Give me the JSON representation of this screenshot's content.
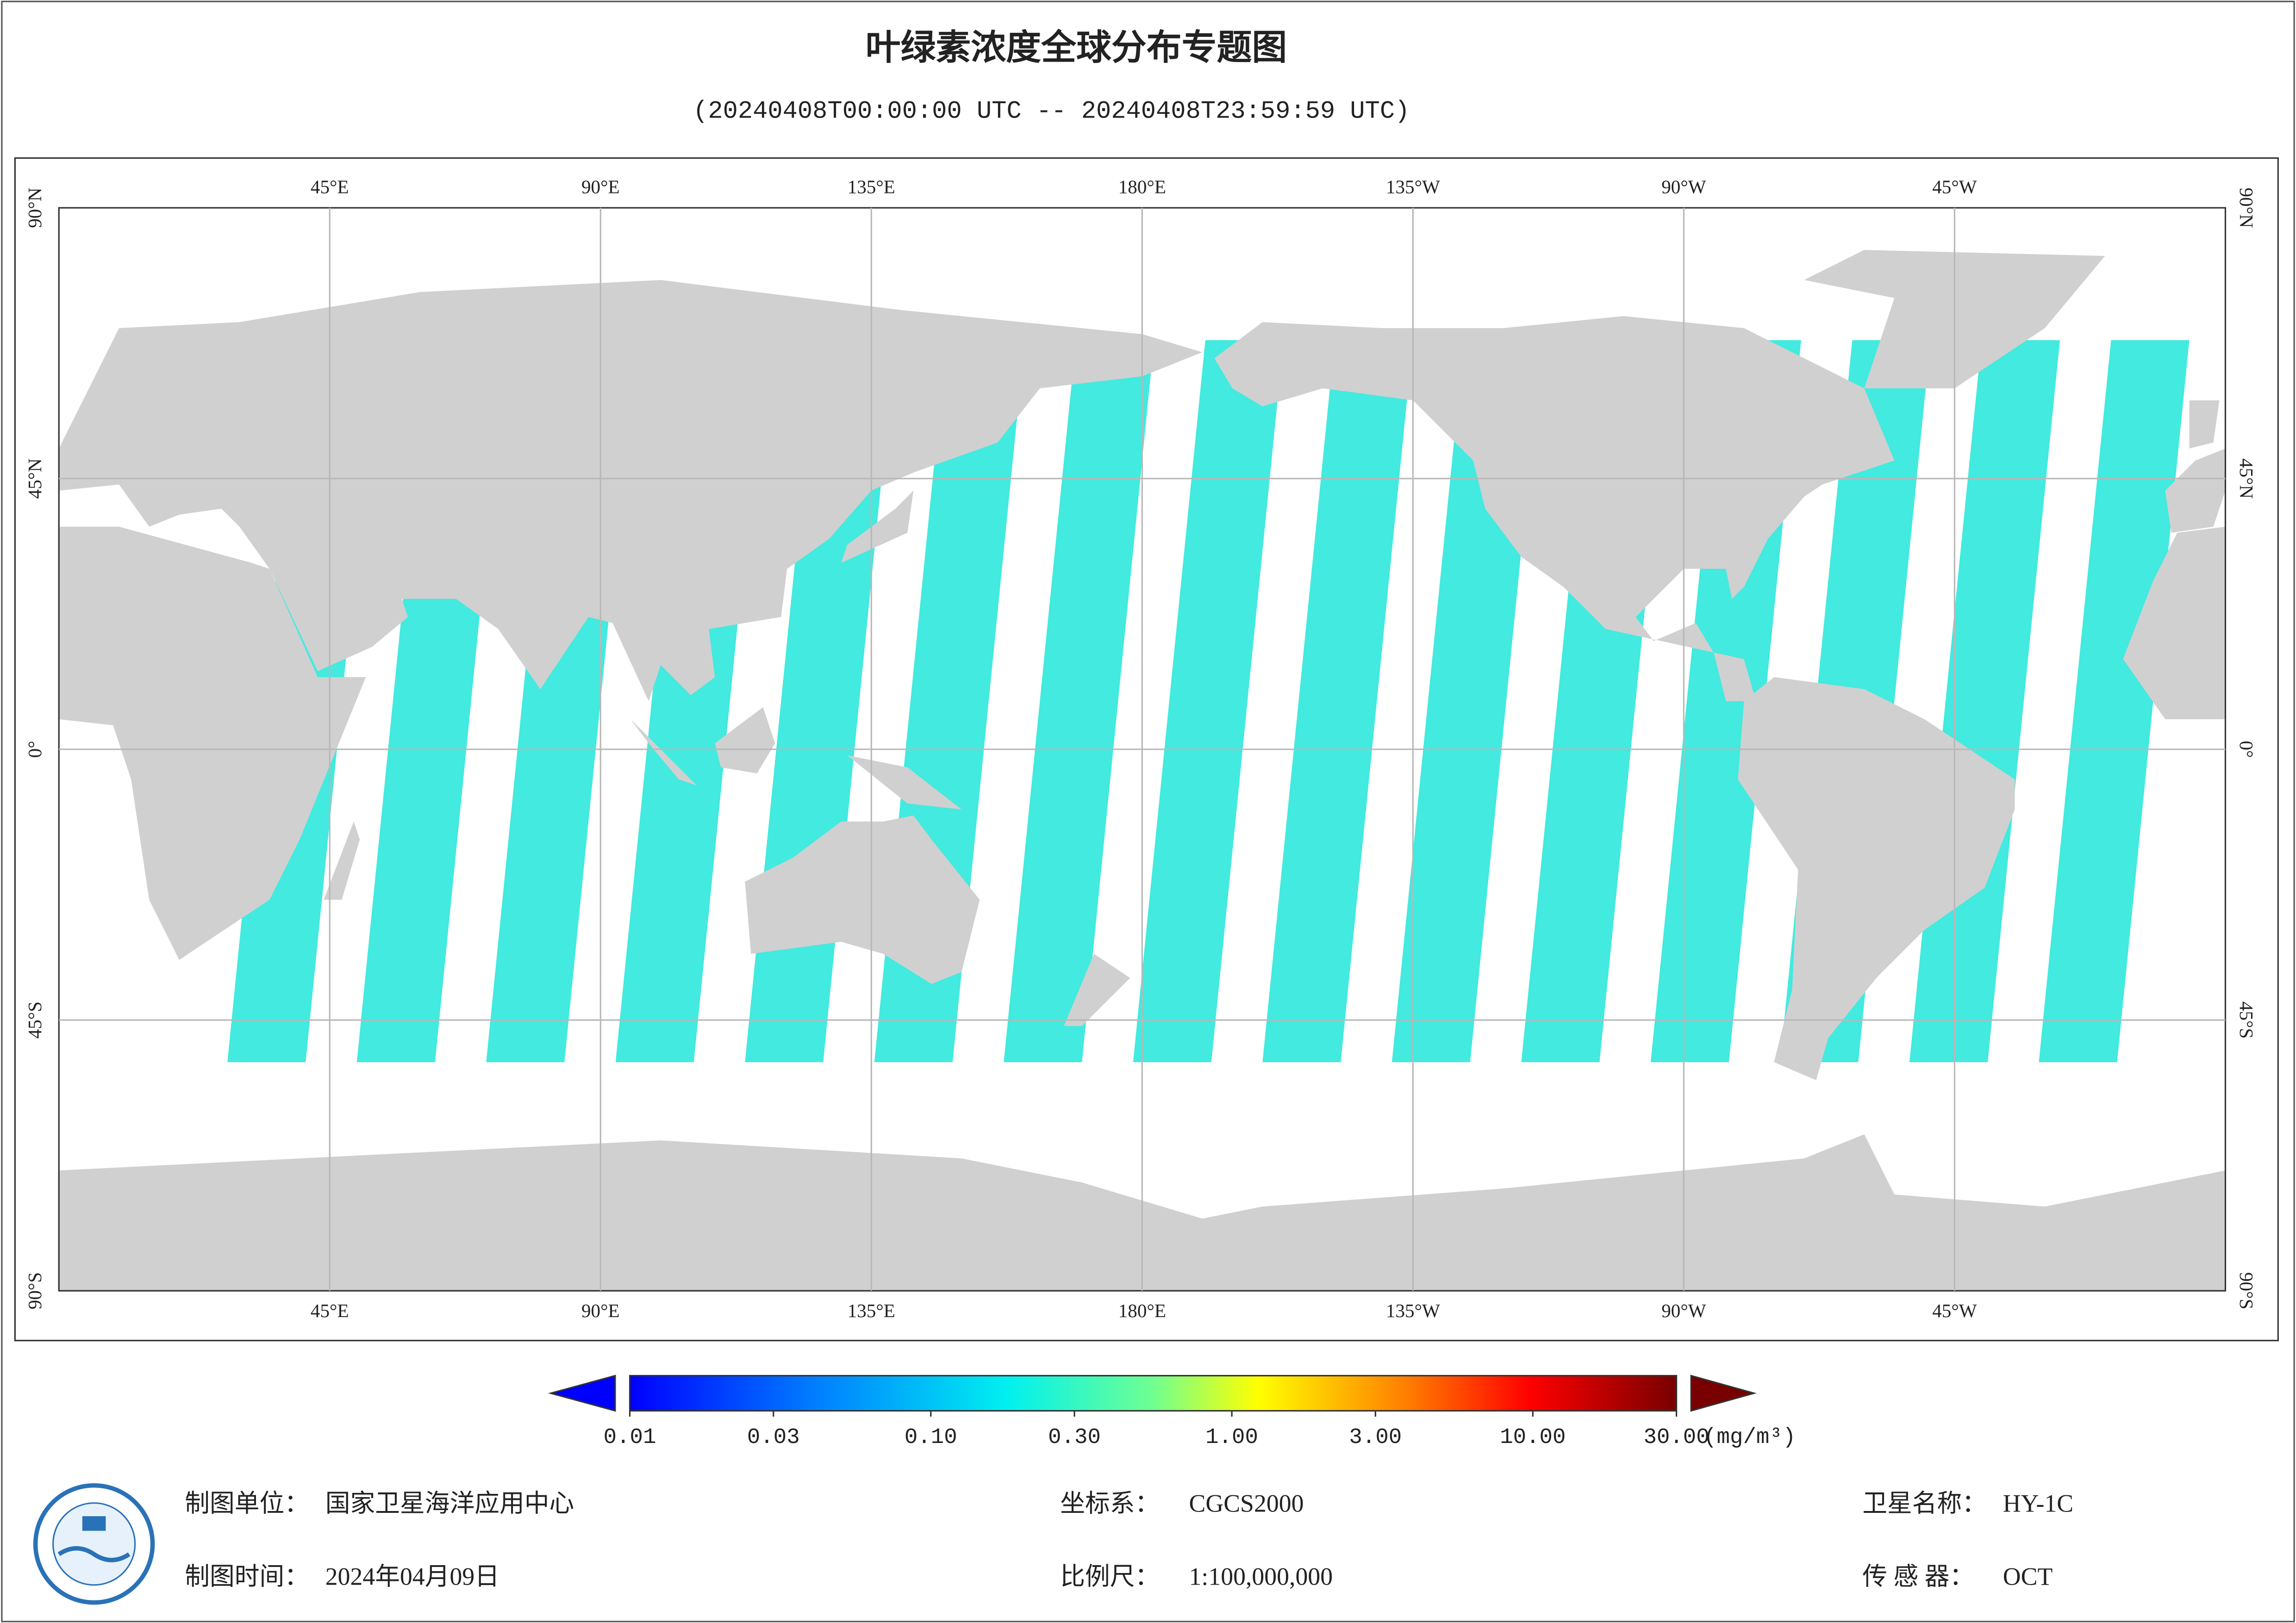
{
  "header": {
    "title": "叶绿素浓度全球分布专题图",
    "subtitle": "(20240408T00:00:00 UTC -- 20240408T23:59:59 UTC)"
  },
  "map": {
    "lonlim": [
      0,
      360
    ],
    "latlim": [
      -90,
      90
    ],
    "lon_ticks": [
      {
        "value": 45,
        "label": "45°E"
      },
      {
        "value": 90,
        "label": "90°E"
      },
      {
        "value": 135,
        "label": "135°E"
      },
      {
        "value": 180,
        "label": "180°E"
      },
      {
        "value": 225,
        "label": "135°W"
      },
      {
        "value": 270,
        "label": "90°W"
      },
      {
        "value": 315,
        "label": "45°W"
      }
    ],
    "lat_ticks": [
      {
        "value": 90,
        "label": "90°N"
      },
      {
        "value": 45,
        "label": "45°N"
      },
      {
        "value": 0,
        "label": "0°"
      },
      {
        "value": -45,
        "label": "45°S"
      },
      {
        "value": -90,
        "label": "90°S"
      }
    ]
  },
  "colorbar": {
    "log": true,
    "lim": [
      0.01,
      30
    ],
    "ticks": [
      0.01,
      0.03,
      {
        "value": 0.1,
        "label": "0.10"
      },
      {
        "value": 0.3,
        "label": "0.30"
      },
      {
        "value": 1,
        "label": "1.00"
      },
      {
        "value": 3,
        "label": "3.00"
      },
      {
        "value": 10,
        "label": "10.00"
      },
      {
        "value": 30,
        "label": "30.00"
      }
    ],
    "unit": "(mg/m³)"
  },
  "footer": {
    "org": {
      "label": "制图单位：",
      "value": "国家卫星海洋应用中心"
    },
    "date": {
      "label": "制图时间：",
      "value": "2024年04月09日"
    },
    "crs": {
      "label": "坐标系：",
      "value": "CGCS2000"
    },
    "scale": {
      "label": "比例尺：",
      "value": "1:100,000,000"
    },
    "satellite": {
      "label": "卫星名称：",
      "value": "HY-1C"
    },
    "sensor": {
      "label": "传 感 器：",
      "value": "OCT"
    }
  }
}
